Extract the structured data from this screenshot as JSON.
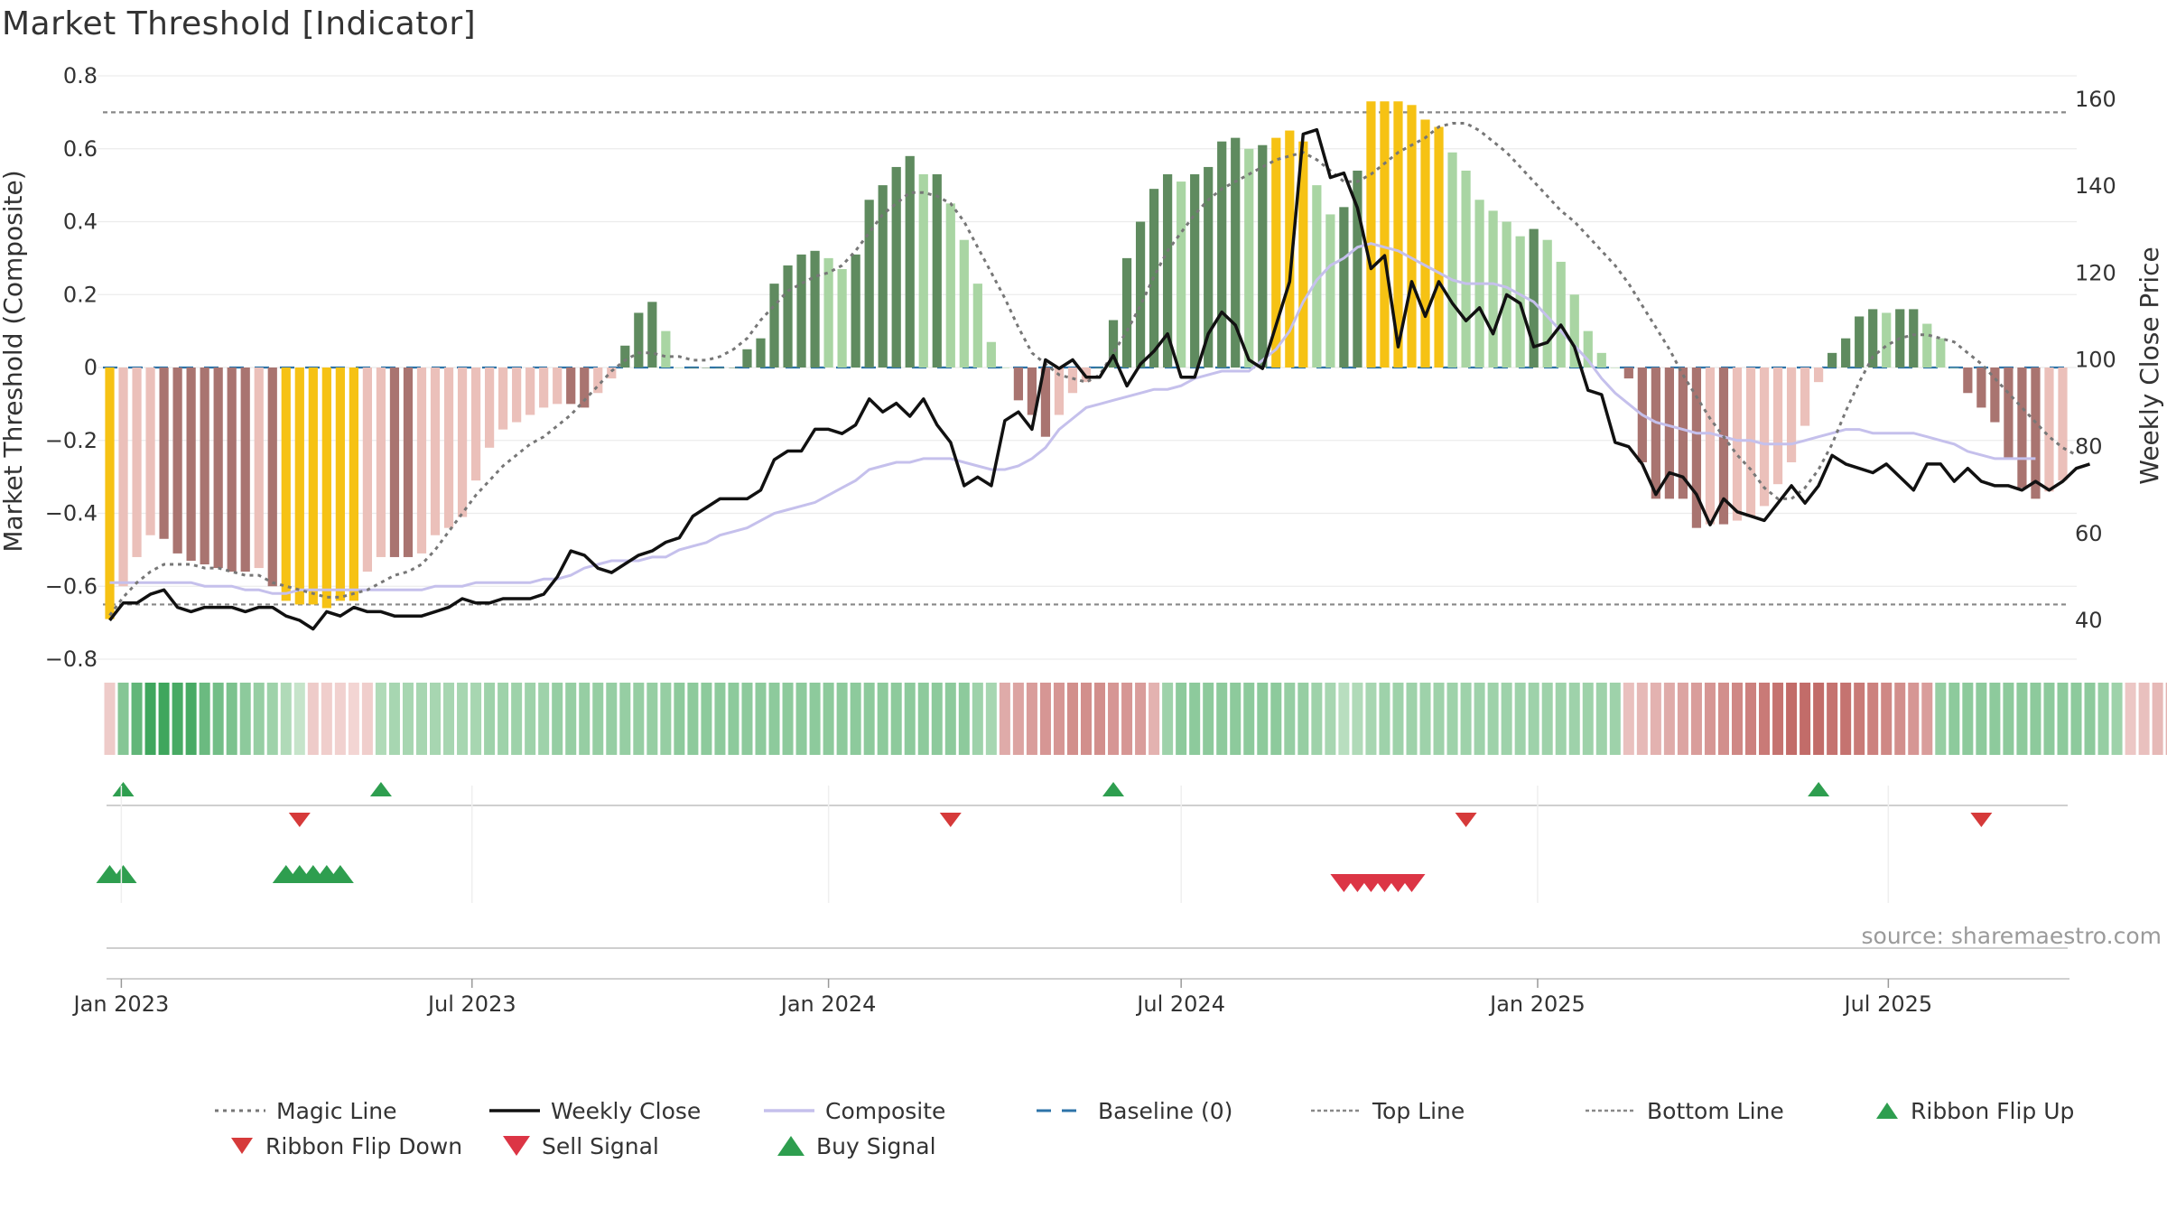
{
  "title": "Market Threshold [Indicator]",
  "source": "source: sharemaestro.com",
  "colors": {
    "strong_pos": "#5f8b5f",
    "weak_pos": "#a9d5a3",
    "strong_neg": "#a97470",
    "weak_neg": "#ebc0ba",
    "extreme": "#f6c214",
    "close_line": "#111111",
    "composite_line": "#c5c0ec",
    "magic_line": "#777777",
    "baseline": "#2d73a8",
    "ribbon_up": "#2e9e4f",
    "ribbon_down": "#d63a3a"
  },
  "chart_data": {
    "type": "bar",
    "title": "Market Threshold [Indicator]",
    "ylabel_left": "Market Threshold (Composite)",
    "ylabel_right": "Weekly Close Price",
    "ylim_left": [
      -0.8,
      0.8
    ],
    "ylim_right": [
      30,
      165
    ],
    "yticks_left": [
      "0.8",
      "0.6",
      "0.4",
      "0.2",
      "0",
      "−0.2",
      "−0.4",
      "−0.6",
      "−0.8"
    ],
    "yticks_right": [
      "160",
      "140",
      "120",
      "100",
      "80",
      "60",
      "40"
    ],
    "x_start": "2022-12-26",
    "x_step_days": 7,
    "x_tick_labels": [
      "Jan 2023",
      "Jul 2023",
      "Jan 2024",
      "Jul 2024",
      "Jan 2025",
      "Jul 2025"
    ],
    "x_tick_dates": [
      "2023-01-01",
      "2023-07-01",
      "2024-01-01",
      "2024-07-01",
      "2025-01-01",
      "2025-07-01"
    ],
    "top_line": 0.7,
    "bottom_line": -0.65,
    "grid": true,
    "legend_position": "bottom",
    "series": [
      {
        "name": "Composite (bars)",
        "values": [
          -0.69,
          -0.6,
          -0.52,
          -0.46,
          -0.47,
          -0.51,
          -0.53,
          -0.54,
          -0.55,
          -0.56,
          -0.56,
          -0.55,
          -0.6,
          -0.64,
          -0.65,
          -0.65,
          -0.66,
          -0.64,
          -0.64,
          -0.56,
          -0.52,
          -0.52,
          -0.52,
          -0.51,
          -0.46,
          -0.44,
          -0.41,
          -0.31,
          -0.22,
          -0.17,
          -0.15,
          -0.13,
          -0.11,
          -0.1,
          -0.1,
          -0.11,
          -0.07,
          -0.03,
          0.06,
          0.15,
          0.18,
          0.1,
          0.0,
          0.0,
          0.0,
          0.0,
          0.0,
          0.05,
          0.08,
          0.23,
          0.28,
          0.31,
          0.32,
          0.3,
          0.27,
          0.31,
          0.46,
          0.5,
          0.55,
          0.58,
          0.53,
          0.53,
          0.45,
          0.35,
          0.23,
          0.07,
          0.0,
          -0.09,
          -0.13,
          -0.19,
          -0.13,
          -0.07,
          -0.04,
          0.0,
          0.13,
          0.3,
          0.4,
          0.49,
          0.53,
          0.51,
          0.53,
          0.55,
          0.62,
          0.63,
          0.6,
          0.61,
          0.63,
          0.65,
          0.62,
          0.5,
          0.42,
          0.44,
          0.54,
          0.73,
          0.73,
          0.73,
          0.72,
          0.68,
          0.66,
          0.59,
          0.54,
          0.46,
          0.43,
          0.4,
          0.36,
          0.38,
          0.35,
          0.29,
          0.2,
          0.1,
          0.04,
          0.0,
          -0.03,
          -0.26,
          -0.36,
          -0.36,
          -0.36,
          -0.44,
          -0.43,
          -0.43,
          -0.42,
          -0.41,
          -0.38,
          -0.32,
          -0.26,
          -0.16,
          -0.04,
          0.04,
          0.08,
          0.14,
          0.16,
          0.15,
          0.16,
          0.16,
          0.12,
          0.08,
          0.0,
          -0.07,
          -0.11,
          -0.15,
          -0.25,
          -0.33,
          -0.36,
          -0.34,
          -0.31
        ]
      },
      {
        "name": "Magic Line",
        "values": [
          -0.68,
          -0.63,
          -0.59,
          -0.56,
          -0.54,
          -0.54,
          -0.54,
          -0.55,
          -0.55,
          -0.56,
          -0.57,
          -0.57,
          -0.59,
          -0.6,
          -0.61,
          -0.62,
          -0.63,
          -0.63,
          -0.62,
          -0.61,
          -0.59,
          -0.57,
          -0.56,
          -0.54,
          -0.5,
          -0.45,
          -0.4,
          -0.35,
          -0.31,
          -0.27,
          -0.24,
          -0.21,
          -0.19,
          -0.16,
          -0.13,
          -0.09,
          -0.05,
          -0.01,
          0.02,
          0.04,
          0.04,
          0.03,
          0.03,
          0.02,
          0.02,
          0.03,
          0.05,
          0.08,
          0.13,
          0.17,
          0.21,
          0.23,
          0.25,
          0.26,
          0.28,
          0.32,
          0.37,
          0.42,
          0.45,
          0.48,
          0.48,
          0.47,
          0.45,
          0.4,
          0.33,
          0.26,
          0.19,
          0.11,
          0.04,
          0.01,
          -0.02,
          -0.03,
          -0.04,
          -0.02,
          0.04,
          0.1,
          0.17,
          0.25,
          0.32,
          0.37,
          0.42,
          0.46,
          0.49,
          0.51,
          0.53,
          0.55,
          0.57,
          0.58,
          0.59,
          0.57,
          0.54,
          0.51,
          0.51,
          0.53,
          0.56,
          0.59,
          0.61,
          0.63,
          0.66,
          0.67,
          0.67,
          0.65,
          0.62,
          0.59,
          0.55,
          0.51,
          0.47,
          0.43,
          0.4,
          0.36,
          0.32,
          0.28,
          0.23,
          0.17,
          0.11,
          0.05,
          -0.02,
          -0.08,
          -0.14,
          -0.19,
          -0.24,
          -0.28,
          -0.33,
          -0.36,
          -0.36,
          -0.33,
          -0.28,
          -0.21,
          -0.12,
          -0.04,
          0.03,
          0.06,
          0.08,
          0.09,
          0.09,
          0.08,
          0.07,
          0.04,
          0.01,
          -0.03,
          -0.07,
          -0.11,
          -0.15,
          -0.19,
          -0.22,
          -0.24
        ]
      },
      {
        "name": "Weekly Close",
        "values": [
          40,
          44,
          44,
          46,
          47,
          43,
          42,
          43,
          43,
          43,
          42,
          43,
          43,
          41,
          40,
          38,
          42,
          41,
          43,
          42,
          42,
          41,
          41,
          41,
          42,
          43,
          45,
          44,
          44,
          45,
          45,
          45,
          46,
          50,
          56,
          55,
          52,
          51,
          53,
          55,
          56,
          58,
          59,
          64,
          66,
          68,
          68,
          68,
          70,
          77,
          79,
          79,
          84,
          84,
          83,
          85,
          91,
          88,
          90,
          87,
          91,
          85,
          81,
          71,
          73,
          71,
          86,
          88,
          84,
          100,
          98,
          100,
          96,
          96,
          101,
          94,
          99,
          102,
          106,
          96,
          96,
          106,
          111,
          108,
          100,
          98,
          108,
          118,
          152,
          153,
          142,
          143,
          135,
          121,
          124,
          103,
          118,
          110,
          118,
          113,
          109,
          112,
          106,
          115,
          113,
          103,
          104,
          108,
          103,
          93,
          92,
          81,
          80,
          76,
          69,
          74,
          73,
          69,
          62,
          68,
          65,
          64,
          63,
          67,
          71,
          67,
          71,
          78,
          76,
          75,
          74,
          76,
          73,
          70,
          76,
          76,
          72,
          75,
          72,
          71,
          71,
          70,
          72,
          70,
          72,
          75,
          76
        ]
      },
      {
        "name": "Composite",
        "values": [
          -0.59,
          -0.59,
          -0.59,
          -0.59,
          -0.59,
          -0.59,
          -0.59,
          -0.6,
          -0.6,
          -0.6,
          -0.61,
          -0.61,
          -0.62,
          -0.62,
          -0.61,
          -0.61,
          -0.61,
          -0.61,
          -0.61,
          -0.61,
          -0.61,
          -0.61,
          -0.61,
          -0.61,
          -0.6,
          -0.6,
          -0.6,
          -0.59,
          -0.59,
          -0.59,
          -0.59,
          -0.59,
          -0.58,
          -0.58,
          -0.57,
          -0.55,
          -0.54,
          -0.53,
          -0.53,
          -0.53,
          -0.52,
          -0.52,
          -0.5,
          -0.49,
          -0.48,
          -0.46,
          -0.45,
          -0.44,
          -0.42,
          -0.4,
          -0.39,
          -0.38,
          -0.37,
          -0.35,
          -0.33,
          -0.31,
          -0.28,
          -0.27,
          -0.26,
          -0.26,
          -0.25,
          -0.25,
          -0.25,
          -0.26,
          -0.27,
          -0.28,
          -0.28,
          -0.27,
          -0.25,
          -0.22,
          -0.17,
          -0.14,
          -0.11,
          -0.1,
          -0.09,
          -0.08,
          -0.07,
          -0.06,
          -0.06,
          -0.05,
          -0.03,
          -0.02,
          -0.01,
          -0.01,
          -0.01,
          0.02,
          0.05,
          0.1,
          0.18,
          0.24,
          0.28,
          0.3,
          0.33,
          0.34,
          0.33,
          0.32,
          0.3,
          0.28,
          0.26,
          0.24,
          0.23,
          0.23,
          0.23,
          0.22,
          0.2,
          0.18,
          0.14,
          0.1,
          0.06,
          0.02,
          -0.03,
          -0.07,
          -0.1,
          -0.13,
          -0.15,
          -0.16,
          -0.17,
          -0.18,
          -0.18,
          -0.19,
          -0.2,
          -0.2,
          -0.21,
          -0.21,
          -0.21,
          -0.2,
          -0.19,
          -0.18,
          -0.17,
          -0.17,
          -0.18,
          -0.18,
          -0.18,
          -0.18,
          -0.19,
          -0.2,
          -0.21,
          -0.23,
          -0.24,
          -0.25,
          -0.25,
          -0.25,
          -0.25
        ]
      },
      {
        "name": "Baseline (0)",
        "values": [
          0
        ]
      },
      {
        "name": "Top Line",
        "values": [
          0.7
        ]
      },
      {
        "name": "Bottom Line",
        "values": [
          -0.65
        ]
      }
    ],
    "ribbon": {
      "description_key": "signed strength per week (-1..1), color intensity",
      "values": [
        -0.12,
        0.5,
        0.7,
        0.9,
        0.9,
        0.85,
        0.85,
        0.65,
        0.6,
        0.55,
        0.45,
        0.4,
        0.35,
        0.25,
        0.12,
        -0.12,
        -0.1,
        -0.08,
        -0.05,
        -0.1,
        0.25,
        0.3,
        0.3,
        0.3,
        0.3,
        0.3,
        0.3,
        0.3,
        0.35,
        0.35,
        0.35,
        0.35,
        0.35,
        0.4,
        0.4,
        0.4,
        0.4,
        0.4,
        0.4,
        0.4,
        0.4,
        0.4,
        0.45,
        0.45,
        0.45,
        0.45,
        0.45,
        0.45,
        0.45,
        0.45,
        0.45,
        0.45,
        0.45,
        0.45,
        0.45,
        0.45,
        0.45,
        0.45,
        0.45,
        0.45,
        0.45,
        0.45,
        0.45,
        0.45,
        0.35,
        0.3,
        -0.35,
        -0.4,
        -0.45,
        -0.5,
        -0.5,
        -0.55,
        -0.55,
        -0.55,
        -0.5,
        -0.5,
        -0.45,
        -0.3,
        0.35,
        0.45,
        0.45,
        0.45,
        0.45,
        0.45,
        0.45,
        0.45,
        0.45,
        0.4,
        0.4,
        0.35,
        0.3,
        0.2,
        0.25,
        0.3,
        0.35,
        0.35,
        0.35,
        0.35,
        0.35,
        0.35,
        0.35,
        0.35,
        0.35,
        0.35,
        0.35,
        0.35,
        0.35,
        0.35,
        0.35,
        0.35,
        0.35,
        0.35,
        -0.2,
        -0.25,
        -0.3,
        -0.35,
        -0.4,
        -0.45,
        -0.5,
        -0.55,
        -0.6,
        -0.65,
        -0.7,
        -0.75,
        -0.8,
        -0.8,
        -0.8,
        -0.75,
        -0.75,
        -0.7,
        -0.65,
        -0.6,
        -0.55,
        -0.5,
        -0.45,
        0.4,
        0.45,
        0.45,
        0.45,
        0.45,
        0.45,
        0.45,
        0.45,
        0.45,
        0.45,
        0.45,
        0.45,
        0.4,
        0.35,
        -0.15,
        -0.2,
        -0.25,
        -0.3,
        -0.35,
        -0.35,
        -0.4
      ]
    },
    "ribbon_flips": {
      "up_weeks": [
        1,
        20,
        74,
        126
      ],
      "down_weeks": [
        14,
        62,
        100,
        138
      ]
    },
    "signals": {
      "buy_weeks": [
        0,
        1,
        13,
        14,
        15,
        16,
        17
      ],
      "sell_weeks": [
        91,
        92,
        93,
        94,
        95,
        96
      ]
    },
    "legend": [
      "Magic Line",
      "Weekly Close",
      "Composite",
      "Baseline (0)",
      "Top Line",
      "Bottom Line",
      "Ribbon Flip Up",
      "Ribbon Flip Down",
      "Sell Signal",
      "Buy Signal"
    ]
  }
}
